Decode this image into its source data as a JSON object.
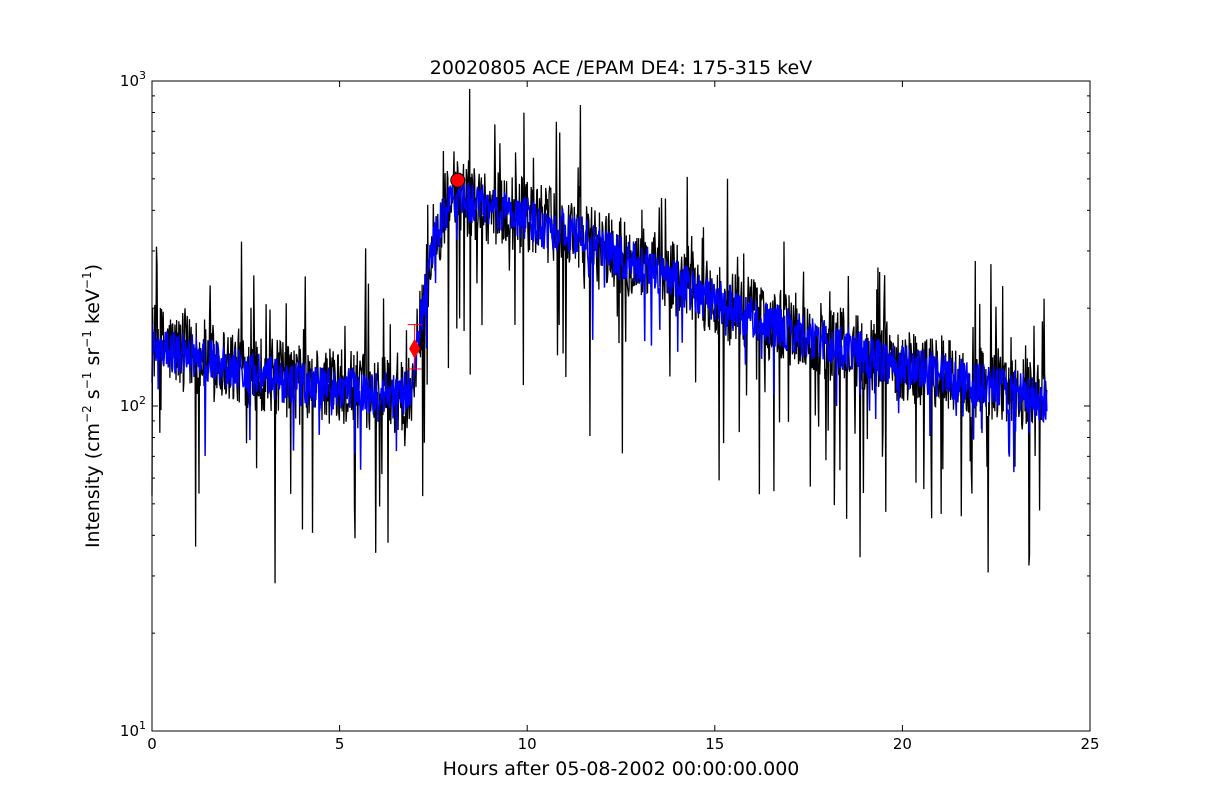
{
  "chart_data": {
    "type": "line",
    "title": "20020805 ACE /EPAM DE4: 175-315 keV",
    "xlabel": "Hours after 05-08-2002 00:00:00.000",
    "ylabel": {
      "base": "Intensity (cm",
      "sup1": "−2",
      "s": " s",
      "sup2": "−1",
      "sr": " sr",
      "sup3": "−1",
      "kev": " keV",
      "sup4": "−1",
      "end": ")"
    },
    "xlim": [
      0,
      25
    ],
    "ylim": [
      10,
      1000
    ],
    "yscale": "log",
    "grid": false,
    "x_ticks": [
      0,
      5,
      10,
      15,
      20,
      25
    ],
    "x_tick_labels": [
      "0",
      "5",
      "10",
      "15",
      "20",
      "25"
    ],
    "y_ticks": [
      10,
      100,
      1000
    ],
    "y_tick_labels": [
      {
        "base": "10",
        "exp": "1"
      },
      {
        "base": "10",
        "exp": "2"
      },
      {
        "base": "10",
        "exp": "3"
      }
    ],
    "series": [
      {
        "color": "#000000",
        "style": "raw",
        "x": [
          0.0,
          0.5,
          1.0,
          1.5,
          2.0,
          2.5,
          3.0,
          3.5,
          4.0,
          4.5,
          5.0,
          5.5,
          6.0,
          6.5,
          6.9,
          7.2,
          7.5,
          7.8,
          8.1,
          8.5,
          9.0,
          9.5,
          10.0,
          10.5,
          11.0,
          11.5,
          12.0,
          12.5,
          13.0,
          13.5,
          14.0,
          14.5,
          15.0,
          15.5,
          16.0,
          16.5,
          17.0,
          17.5,
          18.0,
          18.5,
          19.0,
          19.5,
          20.0,
          20.5,
          21.0,
          21.5,
          22.0,
          22.5,
          23.0,
          23.5,
          23.85
        ],
        "y": [
          160,
          150,
          145,
          140,
          135,
          130,
          125,
          120,
          118,
          115,
          115,
          112,
          110,
          108,
          112,
          200,
          320,
          400,
          450,
          430,
          410,
          400,
          380,
          360,
          350,
          330,
          310,
          290,
          275,
          260,
          245,
          230,
          215,
          200,
          190,
          180,
          172,
          165,
          158,
          152,
          146,
          140,
          135,
          130,
          126,
          122,
          118,
          115,
          112,
          108,
          105
        ]
      },
      {
        "color": "#0000ff",
        "style": "smoothed",
        "x": [
          0.0,
          0.5,
          1.0,
          1.5,
          2.0,
          2.5,
          3.0,
          3.5,
          4.0,
          4.5,
          5.0,
          5.5,
          6.0,
          6.5,
          6.9,
          7.2,
          7.5,
          7.8,
          8.1,
          8.5,
          9.0,
          9.5,
          10.0,
          10.5,
          11.0,
          11.5,
          12.0,
          12.5,
          13.0,
          13.5,
          14.0,
          14.5,
          15.0,
          15.5,
          16.0,
          16.5,
          17.0,
          17.5,
          18.0,
          18.5,
          19.0,
          19.5,
          20.0,
          20.5,
          21.0,
          21.5,
          22.0,
          22.5,
          23.0,
          23.5,
          23.85
        ],
        "y": [
          155,
          148,
          143,
          138,
          133,
          128,
          123,
          119,
          117,
          114,
          114,
          111,
          109,
          107,
          111,
          195,
          310,
          395,
          440,
          425,
          405,
          395,
          375,
          355,
          345,
          325,
          305,
          285,
          270,
          255,
          240,
          226,
          212,
          198,
          188,
          178,
          170,
          163,
          156,
          150,
          144,
          138,
          133,
          128,
          124,
          120,
          116,
          113,
          110,
          106,
          103
        ]
      }
    ],
    "markers": [
      {
        "shape": "circle",
        "color": "#ff0000",
        "x": 8.15,
        "y": 495
      },
      {
        "shape": "diamond",
        "color": "#ff0000",
        "x": 7.0,
        "y": 150,
        "error_low": 130,
        "error_high": 178
      }
    ]
  }
}
